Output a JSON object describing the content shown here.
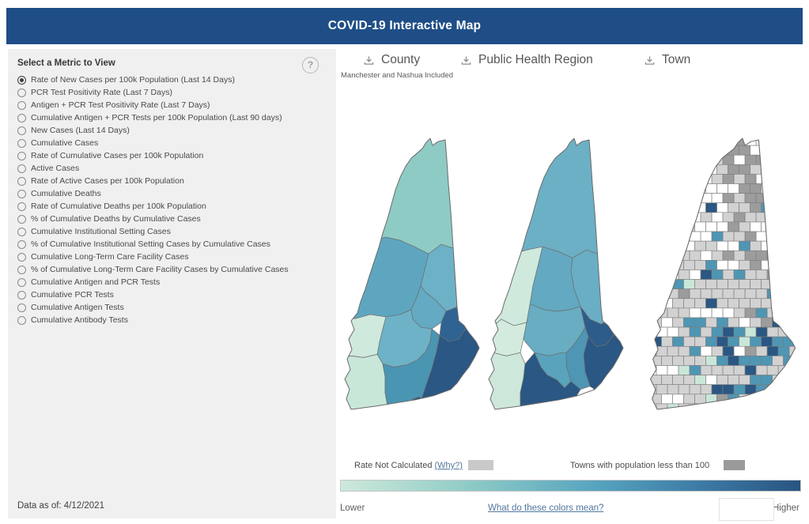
{
  "header": {
    "title": "COVID-19 Interactive Map"
  },
  "colors": {
    "banner": "#1f4e87",
    "link": "#53779c",
    "panel": "#f0f0f0"
  },
  "metric_panel": {
    "title": "Select a Metric to View",
    "help_icon": "?",
    "options": [
      {
        "label": "Rate of New Cases per 100k Population (Last 14 Days)",
        "selected": true
      },
      {
        "label": "PCR Test Positivity Rate (Last 7 Days)",
        "selected": false
      },
      {
        "label": "Antigen + PCR Test Positivity Rate (Last 7 Days)",
        "selected": false
      },
      {
        "label": "Cumulative Antigen + PCR Tests per 100k Population (Last 90 days)",
        "selected": false
      },
      {
        "label": "New Cases (Last 14 Days)",
        "selected": false
      },
      {
        "label": "Cumulative Cases",
        "selected": false
      },
      {
        "label": "Rate of Cumulative Cases per 100k Population",
        "selected": false
      },
      {
        "label": "Active Cases",
        "selected": false
      },
      {
        "label": "Rate of Active Cases per 100k Population",
        "selected": false
      },
      {
        "label": "Cumulative Deaths",
        "selected": false
      },
      {
        "label": "Rate of Cumulative Deaths per 100k Population",
        "selected": false
      },
      {
        "label": "% of Cumulative Deaths by Cumulative Cases",
        "selected": false
      },
      {
        "label": "Cumulative Institutional Setting Cases",
        "selected": false
      },
      {
        "label": "% of Cumulative Institutional Setting Cases by Cumulative Cases",
        "selected": false
      },
      {
        "label": "Cumulative Long-Term Care Facility Cases",
        "selected": false
      },
      {
        "label": "% of Cumulative Long-Term Care Facility Cases by Cumulative Cases",
        "selected": false
      },
      {
        "label": "Cumulative Antigen and PCR Tests",
        "selected": false
      },
      {
        "label": "Cumulative PCR Tests",
        "selected": false
      },
      {
        "label": "Cumulative Antigen Tests",
        "selected": false
      },
      {
        "label": "Cumulative Antibody Tests",
        "selected": false
      }
    ]
  },
  "footer": {
    "data_as_of": "Data as of: 4/12/2021"
  },
  "maps": {
    "county": {
      "label": "County",
      "sublabel": "Manchester and Nashua Included",
      "fills": {
        "north": "#8ecbc4",
        "west_central": "#5ea6c0",
        "east_central": "#6db1c7",
        "lakes": "#63aac2",
        "east": "#2f6391",
        "central": "#6db2c6",
        "west": "#cfe9dd",
        "southwest": "#c9e7d9",
        "south_central": "#4a95b2",
        "southeast": "#2a5783",
        "south_notch": "#2a5783"
      }
    },
    "phr": {
      "label": "Public Health Region",
      "fills": {
        "north": "#6cb0c5",
        "east_central": "#69aec5",
        "upper_valley": "#cfe9dd",
        "lakes": "#63a9c1",
        "west": "#d2ebde",
        "capital": "#68adc2",
        "southwest": "#cde8da",
        "strafford": "#2d5c8b",
        "seacoast": "#2a5783",
        "derry": "#4e96b4",
        "manchester": "#5aa3bd",
        "nashua": "#2a5783"
      }
    },
    "town": {
      "label": "Town",
      "palette": {
        "default": "#d2d2d2",
        "no_data": "#ffffff",
        "small_town": "#9c9c9c",
        "low": "#c9e7d9",
        "mid": "#4e96b4",
        "high": "#2a5783"
      }
    }
  },
  "legend": {
    "rate_not_calculated": {
      "text": "Rate Not Calculated",
      "link": "(Why?)",
      "swatch_color": "#c9c9c9"
    },
    "small_towns": {
      "text": "Towns with population less than 100",
      "swatch_color": "#9a9a9a"
    },
    "scale": {
      "lower": "Lower",
      "higher": "Higher",
      "link": "What do these colors mean?",
      "gradient": [
        "#cee9db",
        "#8ecbc6",
        "#57a5bf",
        "#3d7ba6",
        "#285480"
      ]
    }
  }
}
